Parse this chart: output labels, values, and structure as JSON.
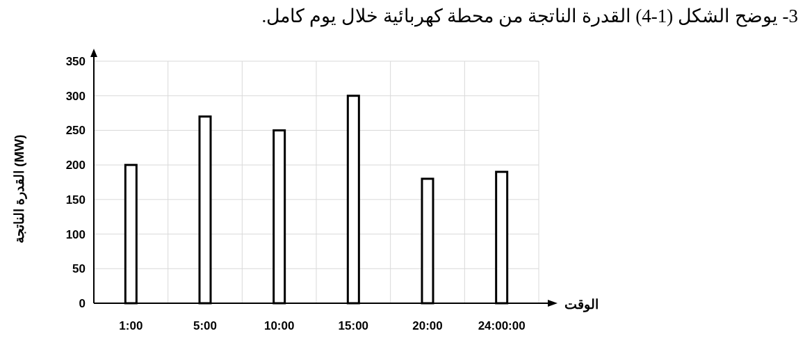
{
  "chart_data": {
    "type": "bar",
    "title": "3- يوضح الشكل (1-4) القدرة الناتجة من محطة كهربائية خلال يوم كامل.",
    "xlabel": "الوقت",
    "ylabel": "القدرة الناتجة (MW)",
    "categories": [
      "1:00",
      "5:00",
      "10:00",
      "15:00",
      "20:00",
      "24:00:00"
    ],
    "values": [
      200,
      270,
      250,
      300,
      180,
      190
    ],
    "color": "#ffffff",
    "ylim": [
      0,
      350
    ],
    "yticks": [
      0,
      50,
      100,
      150,
      200,
      250,
      300,
      350
    ],
    "grid": true
  }
}
